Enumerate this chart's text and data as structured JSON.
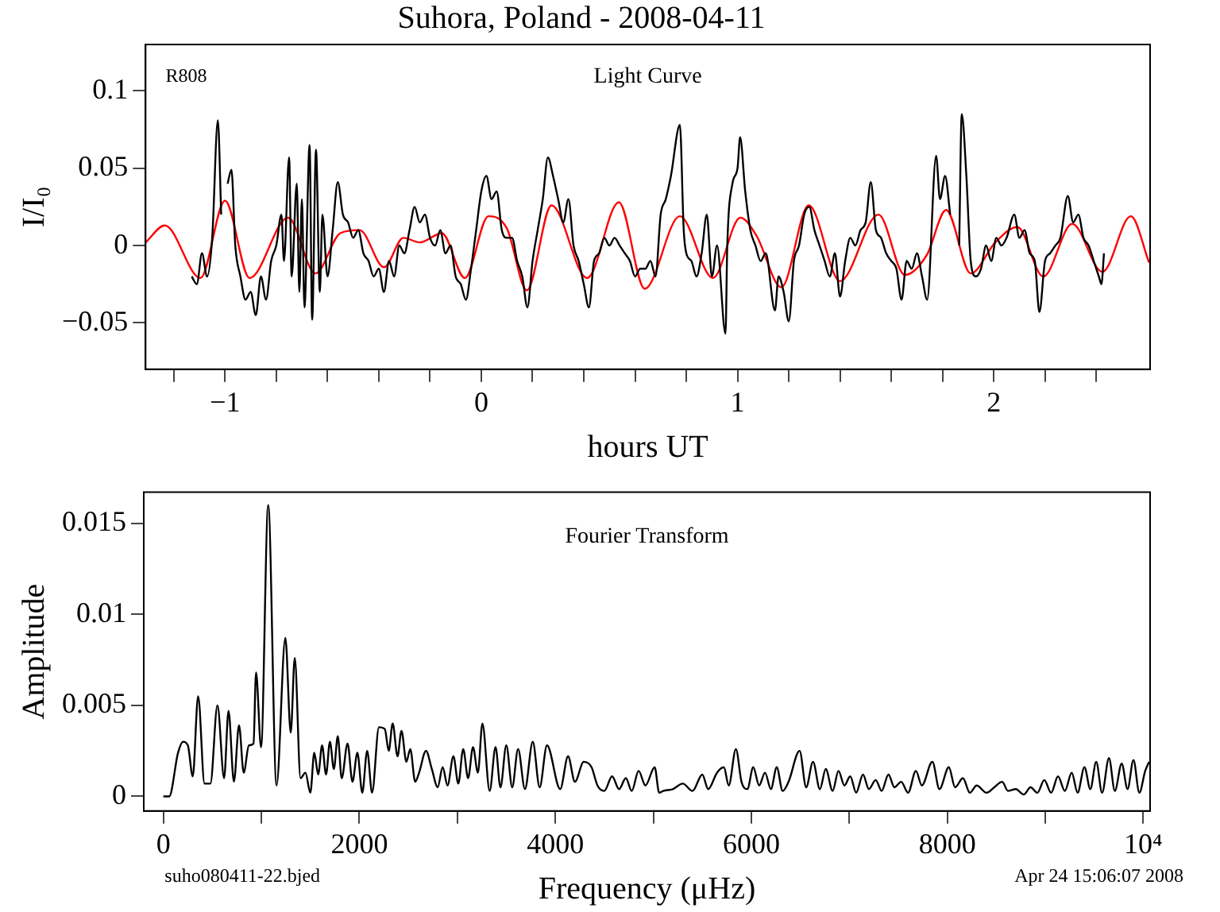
{
  "chart_data": [
    {
      "type": "line",
      "title": "Suhora, Poland - 2008-04-11",
      "xlabel": "hours UT",
      "ylabel": "I/I₀",
      "xlim": [
        -1.31,
        2.61
      ],
      "ylim": [
        -0.08,
        0.13
      ],
      "xticks": [
        {
          "value": -1.2,
          "label": null
        },
        {
          "value": -1,
          "label": "−1"
        },
        {
          "value": -0.8,
          "label": null
        },
        {
          "value": -0.6,
          "label": null
        },
        {
          "value": -0.4,
          "label": null
        },
        {
          "value": -0.2,
          "label": null
        },
        0,
        {
          "value": 0.2,
          "label": null
        },
        {
          "value": 0.4,
          "label": null
        },
        {
          "value": 0.6,
          "label": null
        },
        {
          "value": 0.8,
          "label": null
        },
        1,
        {
          "value": 1.2,
          "label": null
        },
        {
          "value": 1.4,
          "label": null
        },
        {
          "value": 1.6,
          "label": null
        },
        {
          "value": 1.8,
          "label": null
        },
        2,
        {
          "value": 2.2,
          "label": null
        },
        {
          "value": 2.4,
          "label": null
        }
      ],
      "yticks": [
        {
          "value": -0.05,
          "label": "−0.05"
        },
        0,
        0.05,
        0.1
      ],
      "annotations": [
        "R808",
        "Light Curve"
      ],
      "series": [
        {
          "color": "#000000",
          "x": [
            -1.13,
            -1.11,
            -1.09,
            -1.07,
            -1.05,
            -1.028,
            -1.015,
            -1.0,
            -0.99,
            -0.975,
            -0.96,
            -0.94,
            -0.92,
            -0.9,
            -0.88,
            -0.86,
            -0.84,
            -0.82,
            -0.8,
            -0.78,
            -0.77,
            -0.75,
            -0.74,
            -0.72,
            -0.71,
            -0.7,
            -0.69,
            -0.67,
            -0.66,
            -0.645,
            -0.63,
            -0.62,
            -0.6,
            -0.58,
            -0.56,
            -0.54,
            -0.52,
            -0.5,
            -0.48,
            -0.46,
            -0.44,
            -0.42,
            -0.4,
            -0.38,
            -0.36,
            -0.34,
            -0.32,
            -0.3,
            -0.28,
            -0.26,
            -0.24,
            -0.22,
            -0.2,
            -0.18,
            -0.16,
            -0.14,
            -0.12,
            -0.1,
            -0.08,
            -0.06,
            -0.04,
            -0.02,
            0.0,
            0.02,
            0.04,
            0.06,
            0.08,
            0.1,
            0.12,
            0.14,
            0.16,
            0.18,
            0.2,
            0.22,
            0.24,
            0.26,
            0.28,
            0.3,
            0.32,
            0.34,
            0.36,
            0.38,
            0.4,
            0.42,
            0.44,
            0.46,
            0.48,
            0.5,
            0.52,
            0.54,
            0.56,
            0.58,
            0.6,
            0.62,
            0.64,
            0.66,
            0.68,
            0.7,
            0.72,
            0.74,
            0.775,
            0.79,
            0.8,
            0.82,
            0.84,
            0.86,
            0.88,
            0.9,
            0.92,
            0.953,
            0.96,
            0.98,
            1.0,
            1.01,
            1.03,
            1.05,
            1.07,
            1.09,
            1.11,
            1.146,
            1.16,
            1.18,
            1.2,
            1.22,
            1.24,
            1.26,
            1.28,
            1.3,
            1.32,
            1.34,
            1.36,
            1.38,
            1.4,
            1.42,
            1.44,
            1.46,
            1.48,
            1.5,
            1.52,
            1.54,
            1.56,
            1.58,
            1.6,
            1.62,
            1.64,
            1.66,
            1.68,
            1.7,
            1.72,
            1.74,
            1.775,
            1.79,
            1.81,
            1.83,
            1.855,
            1.865,
            1.875,
            1.893,
            1.91,
            1.93,
            1.95,
            1.97,
            1.99,
            2.01,
            2.03,
            2.05,
            2.08,
            2.1,
            2.12,
            2.14,
            2.16,
            2.178,
            2.2,
            2.22,
            2.24,
            2.26,
            2.289,
            2.31,
            2.33,
            2.35,
            2.37,
            2.39,
            2.41,
            2.42,
            2.43
          ],
          "values": [
            -0.02,
            -0.025,
            -0.005,
            -0.02,
            0.005,
            0.081,
            0.02,
            null,
            0.04,
            0.049,
            0.0,
            -0.02,
            -0.035,
            -0.03,
            -0.045,
            -0.02,
            -0.035,
            -0.01,
            0.0,
            0.02,
            -0.01,
            0.057,
            -0.02,
            0.04,
            -0.03,
            0.03,
            -0.04,
            0.065,
            -0.048,
            0.062,
            -0.03,
            0.02,
            -0.02,
            0.01,
            0.041,
            0.02,
            0.015,
            0.005,
            0.01,
            -0.005,
            -0.01,
            -0.02,
            -0.015,
            -0.03,
            -0.01,
            -0.02,
            0.0,
            -0.005,
            0.01,
            0.025,
            0.015,
            0.02,
            0.005,
            0.0,
            0.01,
            -0.005,
            0.0,
            -0.02,
            -0.025,
            -0.035,
            -0.015,
            0.01,
            0.035,
            0.045,
            0.03,
            0.035,
            0.01,
            0.005,
            0.005,
            -0.01,
            -0.02,
            -0.04,
            -0.01,
            0.01,
            0.03,
            0.057,
            0.045,
            0.03,
            0.015,
            0.03,
            0.0,
            -0.01,
            -0.025,
            -0.04,
            -0.01,
            -0.005,
            0.005,
            0.0,
            0.005,
            0.0,
            -0.005,
            -0.01,
            -0.02,
            -0.015,
            -0.015,
            -0.01,
            -0.02,
            0.02,
            0.03,
            0.045,
            0.078,
            0.01,
            -0.005,
            -0.01,
            -0.02,
            -0.005,
            0.02,
            -0.02,
            0.0,
            -0.057,
            0.0,
            0.04,
            0.05,
            0.07,
            0.035,
            0.01,
            0.0,
            -0.01,
            -0.005,
            -0.042,
            -0.02,
            -0.03,
            -0.049,
            -0.01,
            0.0,
            0.02,
            0.025,
            0.01,
            0.0,
            -0.01,
            -0.02,
            -0.005,
            -0.033,
            -0.01,
            0.005,
            0.0,
            0.01,
            0.015,
            0.041,
            0.01,
            0.005,
            -0.005,
            -0.01,
            -0.015,
            -0.035,
            -0.01,
            -0.015,
            -0.005,
            -0.02,
            -0.035,
            0.058,
            0.03,
            0.045,
            0.02,
            null,
            0.0,
            0.085,
            0.045,
            -0.01,
            -0.02,
            -0.015,
            0.0,
            -0.01,
            0.005,
            0.0,
            0.005,
            0.02,
            0.005,
            0.01,
            -0.005,
            -0.01,
            -0.043,
            -0.01,
            -0.005,
            0.0,
            0.005,
            0.032,
            0.015,
            0.02,
            0.005,
            0.0,
            -0.01,
            -0.02,
            -0.025,
            -0.005
          ]
        },
        {
          "color": "#ff0000",
          "x": [
            -1.31,
            -1.235,
            -1.096,
            -1.0,
            -0.904,
            -0.754,
            -0.647,
            -0.55,
            -0.475,
            -0.379,
            -0.304,
            -0.24,
            -0.154,
            -0.064,
            0.028,
            0.1,
            0.178,
            0.274,
            0.413,
            0.537,
            0.638,
            0.775,
            0.904,
            1.011,
            1.075,
            1.171,
            1.278,
            1.4,
            1.55,
            1.653,
            1.739,
            1.814,
            1.91,
            2.006,
            2.092,
            2.193,
            2.306,
            2.424,
            2.535,
            2.606
          ],
          "values": [
            0.002,
            0.013,
            -0.021,
            0.029,
            -0.021,
            0.018,
            -0.018,
            0.008,
            0.01,
            -0.014,
            0.005,
            0.002,
            0.008,
            -0.021,
            0.019,
            0.011,
            -0.029,
            0.026,
            -0.021,
            0.028,
            -0.028,
            0.019,
            -0.021,
            0.018,
            0.006,
            -0.027,
            0.026,
            -0.023,
            0.02,
            -0.019,
            -0.006,
            0.023,
            -0.018,
            0.002,
            0.012,
            -0.02,
            0.014,
            -0.017,
            0.019,
            -0.011
          ]
        }
      ]
    },
    {
      "type": "line",
      "xlabel": "Frequency (μHz)",
      "ylabel": "Amplitude",
      "xlim": [
        -200,
        10070
      ],
      "ylim": [
        -0.0008,
        0.0167
      ],
      "xticks": [
        0,
        {
          "value": 1000,
          "label": null
        },
        2000,
        {
          "value": 3000,
          "label": null
        },
        4000,
        {
          "value": 5000,
          "label": null
        },
        6000,
        {
          "value": 7000,
          "label": null
        },
        8000,
        {
          "value": 9000,
          "label": null
        },
        {
          "value": 10000,
          "label": "10⁴"
        }
      ],
      "yticks": [
        0,
        0.005,
        0.01,
        0.015
      ],
      "annotations": [
        "Fourier Transform",
        "suho080411-22.bjed",
        "Apr 24 15:06:07 2008"
      ],
      "x": [
        0,
        60,
        150,
        200,
        250,
        300,
        355,
        420,
        480,
        552,
        620,
        665,
        720,
        772,
        820,
        873,
        920,
        946,
        997,
        1070,
        1155,
        1245,
        1300,
        1341,
        1400,
        1450,
        1500,
        1540,
        1580,
        1620,
        1660,
        1700,
        1740,
        1780,
        1820,
        1880,
        1930,
        1980,
        2030,
        2080,
        2130,
        2200,
        2260,
        2300,
        2340,
        2390,
        2430,
        2480,
        2520,
        2570,
        2610,
        2680,
        2740,
        2800,
        2850,
        2900,
        2960,
        3010,
        3060,
        3110,
        3160,
        3210,
        3256,
        3330,
        3390,
        3440,
        3500,
        3560,
        3620,
        3690,
        3770,
        3840,
        3915,
        4050,
        4130,
        4200,
        4290,
        4370,
        4430,
        4500,
        4580,
        4650,
        4720,
        4780,
        4850,
        4920,
        5014,
        5060,
        5100,
        5200,
        5300,
        5400,
        5500,
        5560,
        5650,
        5720,
        5770,
        5843,
        5900,
        5960,
        6020,
        6080,
        6140,
        6200,
        6260,
        6320,
        6380,
        6493,
        6560,
        6630,
        6700,
        6760,
        6830,
        6890,
        6950,
        7010,
        7070,
        7140,
        7200,
        7270,
        7330,
        7400,
        7460,
        7530,
        7600,
        7680,
        7740,
        7848,
        7920,
        8016,
        8080,
        8160,
        8230,
        8300,
        8400,
        8480,
        8560,
        8620,
        8700,
        8780,
        8850,
        8920,
        8990,
        9060,
        9130,
        9200,
        9270,
        9330,
        9400,
        9460,
        9520,
        9580,
        9650,
        9710,
        9780,
        9840,
        9900,
        9960,
        10020,
        10060
      ],
      "series": [
        {
          "color": "#000000",
          "values": [
            0,
            0,
            0.0024,
            0.003,
            0.0028,
            0.0011,
            0.0055,
            0.0007,
            0.0007,
            0.005,
            0.001,
            0.0047,
            0.0008,
            0.0039,
            0.0013,
            0.0028,
            0.0029,
            0.0068,
            0.0027,
            0.016,
            0.0006,
            0.0087,
            0.0035,
            0.0076,
            0.001,
            0.0013,
            0.0002,
            0.0024,
            0.0012,
            0.0028,
            0.0012,
            0.003,
            0.0015,
            0.0033,
            0.001,
            0.0029,
            0.0008,
            0.0024,
            0.0002,
            0.0025,
            0.0002,
            0.0038,
            0.0037,
            0.0025,
            0.004,
            0.0022,
            0.0036,
            0.0019,
            0.0026,
            0.0008,
            0.0013,
            0.0025,
            0.0015,
            0.0005,
            0.0016,
            0.0006,
            0.0022,
            0.0007,
            0.0026,
            0.001,
            0.0027,
            0.0013,
            0.004,
            0.0003,
            0.0027,
            0.0005,
            0.0028,
            0.0005,
            0.0026,
            0.0004,
            0.003,
            0.0005,
            0.0028,
            0.0004,
            0.0022,
            0.0008,
            0.0019,
            0.0016,
            0.0006,
            0.0003,
            0.0011,
            0.0004,
            0.001,
            0.0003,
            0.0014,
            0.0006,
            0.0016,
            0.0002,
            0.0003,
            0.0004,
            0.0007,
            0.0003,
            0.0012,
            0.0004,
            0.0013,
            0.0016,
            0.0006,
            0.0026,
            0.0008,
            0.0004,
            0.0016,
            0.0006,
            0.0013,
            0.0004,
            0.0016,
            0.0003,
            0.0008,
            0.0025,
            0.0005,
            0.0019,
            0.0004,
            0.0015,
            0.0003,
            0.0014,
            0.0006,
            0.0011,
            0.0002,
            0.0012,
            0.0004,
            0.0009,
            0.0003,
            0.0012,
            0.0005,
            0.0008,
            0.0002,
            0.0014,
            0.0006,
            0.0019,
            0.0004,
            0.0016,
            0.0005,
            0.001,
            0.0002,
            0.0006,
            0.0002,
            0.0005,
            0.0008,
            0.0003,
            0.0004,
            0.0001,
            0.0005,
            0.0002,
            0.0009,
            0.0002,
            0.0011,
            0.0003,
            0.0013,
            0.0002,
            0.0016,
            0.0004,
            0.0019,
            0.0002,
            0.0021,
            0.0003,
            0.0018,
            0.0004,
            0.002,
            0.0002,
            0.0014,
            0.0019
          ]
        }
      ]
    }
  ]
}
